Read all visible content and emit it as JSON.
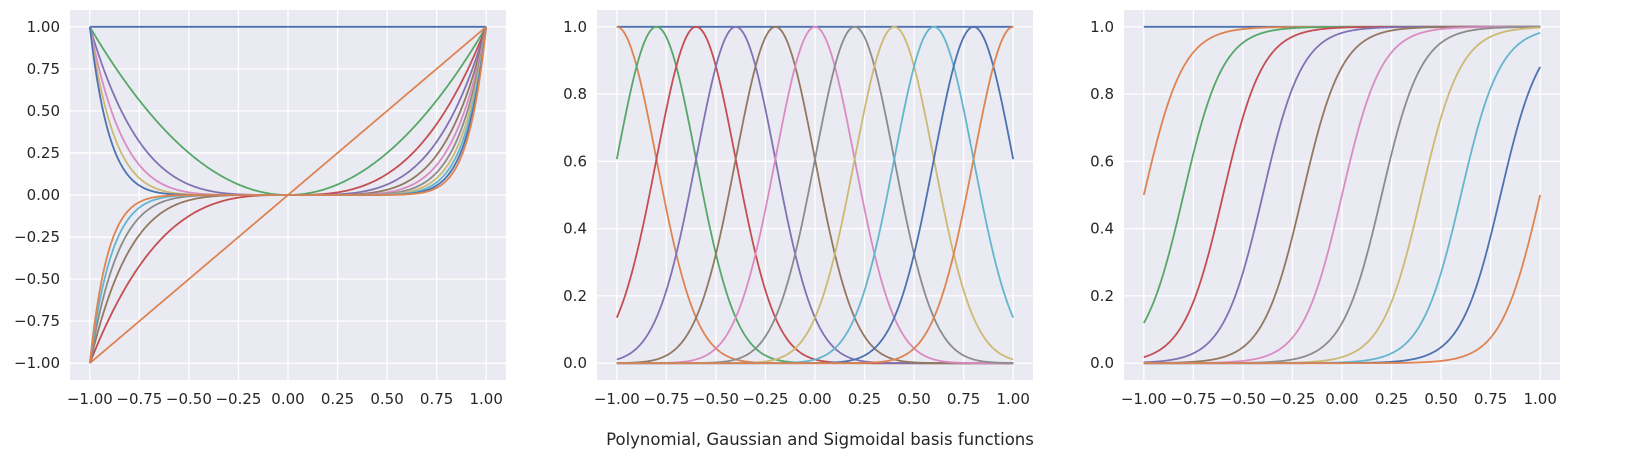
{
  "figure_title": "Polynomial, Gaussian and Sigmoidal basis functions",
  "colors": {
    "axes_bg": "#EAEAF2",
    "grid": "#FFFFFF",
    "palette": [
      "#4C72B0",
      "#DD8452",
      "#55A868",
      "#C44E52",
      "#8172B3",
      "#937860",
      "#DA8BC3",
      "#8C8C8C",
      "#CCB974",
      "#64B5CD"
    ]
  },
  "chart_data": [
    {
      "type": "line",
      "name": "polynomial",
      "x_range": [
        -1,
        1
      ],
      "xlim": [
        -1.1,
        1.1
      ],
      "ylim": [
        -1.1,
        1.1
      ],
      "x_ticks": [
        "−1.00",
        "−0.75",
        "−0.50",
        "−0.25",
        "0.00",
        "0.25",
        "0.50",
        "0.75",
        "1.00"
      ],
      "y_ticks": [
        "−1.00",
        "−0.75",
        "−0.50",
        "−0.25",
        "0.00",
        "0.25",
        "0.50",
        "0.75",
        "1.00"
      ],
      "grid": true,
      "series": [
        {
          "function": "x^0"
        },
        {
          "function": "x^1"
        },
        {
          "function": "x^2"
        },
        {
          "function": "x^3"
        },
        {
          "function": "x^4"
        },
        {
          "function": "x^5"
        },
        {
          "function": "x^6"
        },
        {
          "function": "x^7"
        },
        {
          "function": "x^8"
        },
        {
          "function": "x^9"
        },
        {
          "function": "x^10"
        },
        {
          "function": "x^11"
        }
      ]
    },
    {
      "type": "line",
      "name": "gaussian",
      "x_range": [
        -1,
        1
      ],
      "xlim": [
        -1.1,
        1.1
      ],
      "ylim": [
        -0.05,
        1.05
      ],
      "x_ticks": [
        "−1.00",
        "−0.75",
        "−0.50",
        "−0.25",
        "0.00",
        "0.25",
        "0.50",
        "0.75",
        "1.00"
      ],
      "y_ticks": [
        "0.0",
        "0.2",
        "0.4",
        "0.6",
        "0.8",
        "1.0"
      ],
      "grid": true,
      "width": 0.2,
      "series": [
        {
          "function": "constant",
          "value": 1
        },
        {
          "function": "gaussian",
          "center": -1.0
        },
        {
          "function": "gaussian",
          "center": -0.8
        },
        {
          "function": "gaussian",
          "center": -0.6
        },
        {
          "function": "gaussian",
          "center": -0.4
        },
        {
          "function": "gaussian",
          "center": -0.2
        },
        {
          "function": "gaussian",
          "center": 0.0
        },
        {
          "function": "gaussian",
          "center": 0.2
        },
        {
          "function": "gaussian",
          "center": 0.4
        },
        {
          "function": "gaussian",
          "center": 0.6
        },
        {
          "function": "gaussian",
          "center": 0.8
        },
        {
          "function": "gaussian",
          "center": 1.0
        }
      ]
    },
    {
      "type": "line",
      "name": "sigmoidal",
      "x_range": [
        -1,
        1
      ],
      "xlim": [
        -1.1,
        1.1
      ],
      "ylim": [
        -0.05,
        1.05
      ],
      "x_ticks": [
        "−1.00",
        "−0.75",
        "−0.50",
        "−0.25",
        "0.00",
        "0.25",
        "0.50",
        "0.75",
        "1.00"
      ],
      "y_ticks": [
        "0.0",
        "0.2",
        "0.4",
        "0.6",
        "0.8",
        "1.0"
      ],
      "grid": true,
      "scale": 0.1,
      "series": [
        {
          "function": "constant",
          "value": 1
        },
        {
          "function": "sigmoid",
          "center": -1.0
        },
        {
          "function": "sigmoid",
          "center": -0.8
        },
        {
          "function": "sigmoid",
          "center": -0.6
        },
        {
          "function": "sigmoid",
          "center": -0.4
        },
        {
          "function": "sigmoid",
          "center": -0.2
        },
        {
          "function": "sigmoid",
          "center": 0.0
        },
        {
          "function": "sigmoid",
          "center": 0.2
        },
        {
          "function": "sigmoid",
          "center": 0.4
        },
        {
          "function": "sigmoid",
          "center": 0.6
        },
        {
          "function": "sigmoid",
          "center": 0.8
        },
        {
          "function": "sigmoid",
          "center": 1.0
        }
      ]
    }
  ]
}
